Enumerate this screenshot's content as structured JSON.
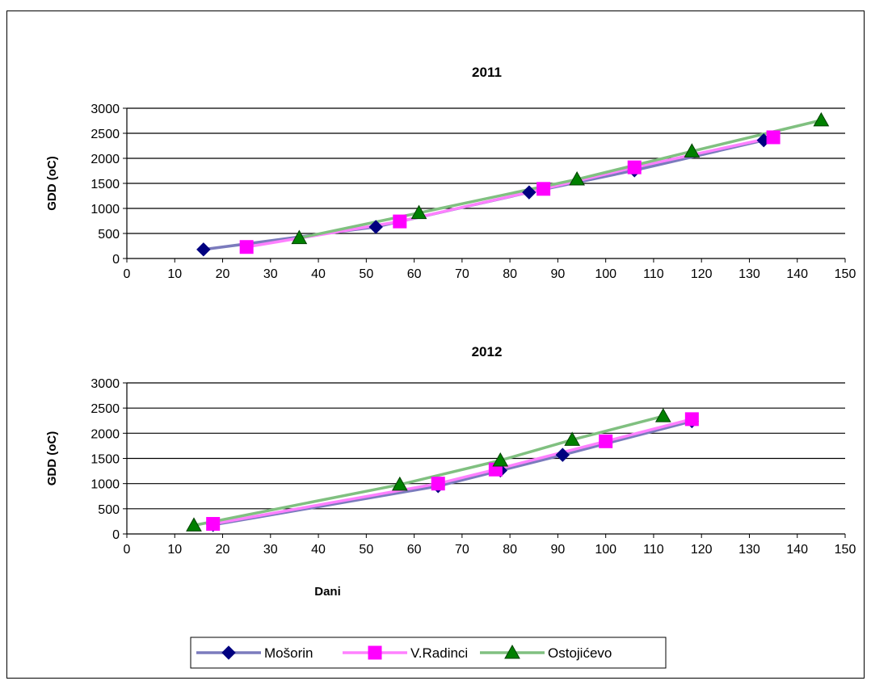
{
  "chart_data": [
    {
      "type": "line",
      "title": "2011",
      "xlabel": "",
      "ylabel": "GDD (oC)",
      "xlim": [
        0,
        150
      ],
      "ylim": [
        0,
        3000
      ],
      "x_ticks": [
        "0",
        "10",
        "20",
        "30",
        "40",
        "50",
        "60",
        "70",
        "80",
        "90",
        "100",
        "110",
        "120",
        "130",
        "140",
        "150"
      ],
      "y_ticks": [
        "0",
        "500",
        "1000",
        "1500",
        "2000",
        "2500",
        "3000"
      ],
      "grid": "horizontal",
      "series": [
        {
          "name": "Mošorin",
          "x": [
            16,
            52,
            84,
            106,
            133
          ],
          "y": [
            180,
            630,
            1320,
            1760,
            2360
          ]
        },
        {
          "name": "V.Radinci",
          "x": [
            25,
            57,
            87,
            106,
            135
          ],
          "y": [
            230,
            740,
            1390,
            1820,
            2420
          ]
        },
        {
          "name": "Ostojićevo",
          "x": [
            36,
            61,
            94,
            118,
            145
          ],
          "y": [
            410,
            910,
            1580,
            2140,
            2760
          ]
        }
      ]
    },
    {
      "type": "line",
      "title": "2012",
      "xlabel": "Dani",
      "ylabel": "GDD (oC)",
      "xlim": [
        0,
        150
      ],
      "ylim": [
        0,
        3000
      ],
      "x_ticks": [
        "0",
        "10",
        "20",
        "30",
        "40",
        "50",
        "60",
        "70",
        "80",
        "90",
        "100",
        "110",
        "120",
        "130",
        "140",
        "150"
      ],
      "y_ticks": [
        "0",
        "500",
        "1000",
        "1500",
        "2000",
        "2500",
        "3000"
      ],
      "grid": "horizontal",
      "series": [
        {
          "name": "Mošorin",
          "x": [
            18,
            65,
            78,
            91,
            118
          ],
          "y": [
            180,
            950,
            1260,
            1570,
            2240
          ]
        },
        {
          "name": "V.Radinci",
          "x": [
            18,
            65,
            77,
            100,
            118
          ],
          "y": [
            200,
            1000,
            1280,
            1840,
            2280
          ]
        },
        {
          "name": "Ostojićevo",
          "x": [
            14,
            57,
            78,
            93,
            112
          ],
          "y": [
            170,
            980,
            1460,
            1870,
            2340
          ]
        }
      ]
    }
  ],
  "legend": {
    "items": [
      {
        "name": "Mošorin",
        "marker": "diamond"
      },
      {
        "name": "V.Radinci",
        "marker": "square"
      },
      {
        "name": "Ostojićevo",
        "marker": "triangle"
      }
    ]
  },
  "colors": {
    "Mošorin_line": "#7b7bbd",
    "Mošorin_marker": "#000080",
    "V.Radinci_line": "#ff80ff",
    "V.Radinci_marker": "#ff00ff",
    "Ostojićevo_line": "#80c080",
    "Ostojićevo_marker": "#008000"
  }
}
